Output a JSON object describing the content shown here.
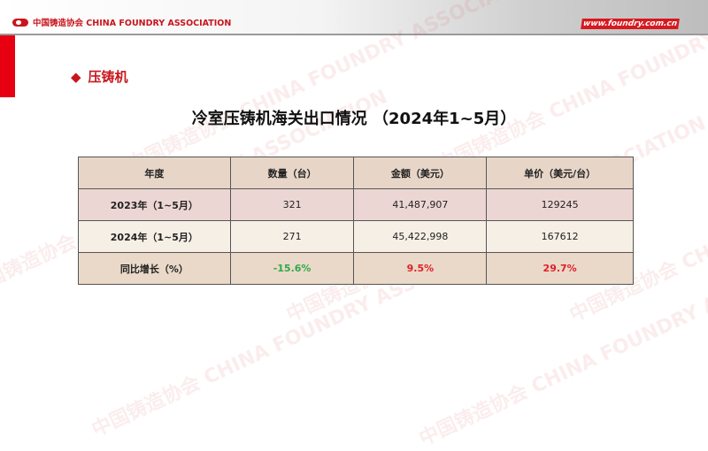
{
  "header": {
    "org_name": "中国铸造协会 CHINA FOUNDRY ASSOCIATION",
    "website": "www.foundry.com.cn",
    "watermark": "中国铸造协会 CHINA FOUNDRY ASSOCIATION"
  },
  "section": {
    "bullet": "◆",
    "title": "压铸机"
  },
  "page_title": "冷室压铸机海关出口情况 （2024年1~5月）",
  "table": {
    "columns": [
      "年度",
      "数量（台）",
      "金额（美元）",
      "单价（美元/台）"
    ],
    "rows": [
      [
        "2023年（1~5月）",
        "321",
        "41,487,907",
        "129245"
      ],
      [
        "2024年（1~5月）",
        "271",
        "45,422,998",
        "167612"
      ],
      [
        "同比增长（%）",
        "-15.6%",
        "9.5%",
        "29.7%"
      ]
    ]
  },
  "colors": {
    "brand_red": "#c8161d",
    "positive": "#e0202a",
    "negative": "#2eaa4a"
  }
}
